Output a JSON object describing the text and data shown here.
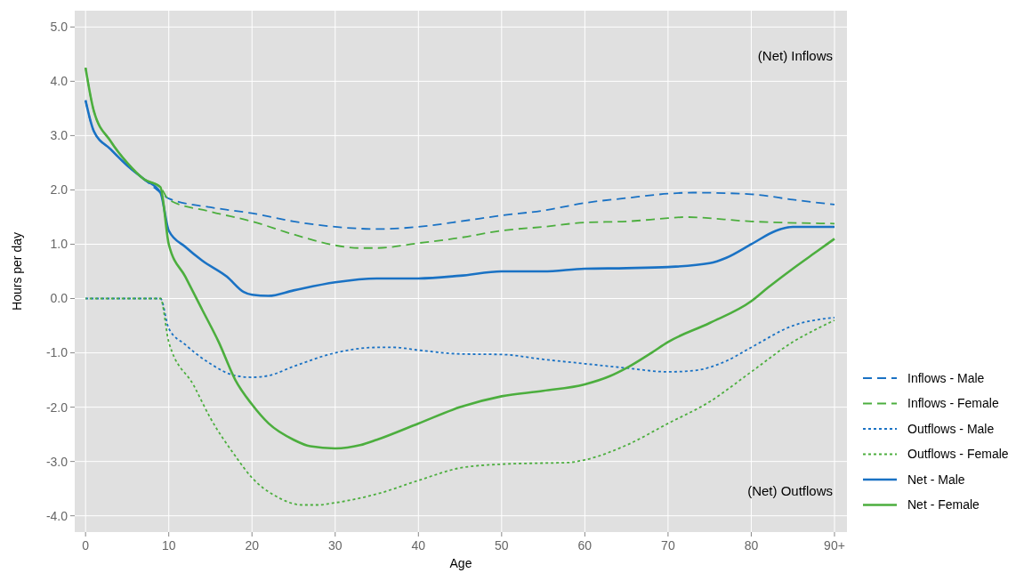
{
  "chart_data": {
    "type": "line",
    "xlabel": "Age",
    "ylabel": "Hours per day",
    "annotations": [
      "(Net) Inflows",
      "(Net) Outflows"
    ],
    "xlim": [
      -1.3,
      91.5
    ],
    "ylim": [
      -4.3,
      5.3
    ],
    "xticks": [
      0,
      10,
      20,
      30,
      40,
      50,
      60,
      70,
      80,
      {
        "value": 90,
        "label": "90+"
      }
    ],
    "yticks": [
      {
        "value": -4,
        "label": "-4.0"
      },
      {
        "value": -3,
        "label": "-3.0"
      },
      {
        "value": -2,
        "label": "-2.0"
      },
      {
        "value": -1,
        "label": "-1.0"
      },
      {
        "value": 0,
        "label": "0.0"
      },
      {
        "value": 1,
        "label": "1.0"
      },
      {
        "value": 2,
        "label": "2.0"
      },
      {
        "value": 3,
        "label": "3.0"
      },
      {
        "value": 4,
        "label": "4.0"
      },
      {
        "value": 5,
        "label": "5.0"
      }
    ],
    "grid": true,
    "legend": "right",
    "marker": "none",
    "series": [
      {
        "name": "Inflows - Male",
        "color": "#1a72c4",
        "line_style": "dashed",
        "x": [
          0,
          1,
          3,
          5,
          7,
          9,
          10,
          15,
          20,
          25,
          30,
          35,
          40,
          45,
          50,
          55,
          60,
          65,
          70,
          73,
          80,
          85,
          90
        ],
        "values": [
          3.65,
          3.08,
          2.75,
          2.45,
          2.2,
          1.95,
          1.84,
          1.68,
          1.57,
          1.42,
          1.32,
          1.28,
          1.32,
          1.42,
          1.53,
          1.62,
          1.76,
          1.85,
          1.93,
          1.95,
          1.92,
          1.82,
          1.73
        ]
      },
      {
        "name": "Inflows - Female",
        "color": "#4cae3e",
        "line_style": "dashed",
        "x": [
          0,
          1,
          3,
          5,
          7,
          9,
          10,
          15,
          20,
          25,
          30,
          33,
          35,
          40,
          45,
          50,
          55,
          60,
          65,
          70,
          72,
          80,
          90
        ],
        "values": [
          4.25,
          3.45,
          2.9,
          2.5,
          2.2,
          2.05,
          1.82,
          1.6,
          1.42,
          1.18,
          0.98,
          0.93,
          0.93,
          1.02,
          1.12,
          1.25,
          1.32,
          1.4,
          1.42,
          1.48,
          1.5,
          1.42,
          1.38
        ]
      },
      {
        "name": "Outflows - Male",
        "color": "#1a72c4",
        "line_style": "dotted",
        "x": [
          0,
          9,
          10,
          12,
          15,
          18,
          20,
          22,
          25,
          30,
          35,
          37,
          40,
          45,
          50,
          55,
          60,
          65,
          70,
          73,
          77,
          80,
          85,
          90
        ],
        "values": [
          0,
          0,
          -0.55,
          -0.85,
          -1.2,
          -1.42,
          -1.45,
          -1.42,
          -1.25,
          -1.0,
          -0.9,
          -0.9,
          -0.95,
          -1.02,
          -1.03,
          -1.12,
          -1.2,
          -1.28,
          -1.35,
          -1.33,
          -1.15,
          -0.9,
          -0.5,
          -0.35
        ]
      },
      {
        "name": "Outflows - Female",
        "color": "#4cae3e",
        "line_style": "dotted",
        "x": [
          0,
          9,
          10,
          13,
          15,
          18,
          20,
          23,
          26,
          28,
          30,
          35,
          40,
          45,
          50,
          55,
          58,
          60,
          65,
          70,
          75,
          80,
          85,
          88,
          90
        ],
        "values": [
          0,
          0,
          -0.8,
          -1.6,
          -2.2,
          -2.9,
          -3.3,
          -3.65,
          -3.8,
          -3.8,
          -3.76,
          -3.6,
          -3.35,
          -3.12,
          -3.05,
          -3.03,
          -3.02,
          -2.97,
          -2.7,
          -2.3,
          -1.9,
          -1.35,
          -0.8,
          -0.55,
          -0.4
        ]
      },
      {
        "name": "Net - Male",
        "color": "#1a72c4",
        "line_style": "solid",
        "x": [
          0,
          1,
          3,
          5,
          7,
          9,
          10,
          12,
          14,
          17,
          19,
          20,
          22,
          25,
          30,
          35,
          40,
          45,
          50,
          55,
          60,
          65,
          70,
          75,
          77,
          80,
          83,
          85,
          90
        ],
        "values": [
          3.65,
          3.08,
          2.75,
          2.45,
          2.2,
          1.95,
          1.25,
          0.95,
          0.7,
          0.4,
          0.12,
          0.07,
          0.05,
          0.15,
          0.3,
          0.37,
          0.37,
          0.42,
          0.5,
          0.5,
          0.55,
          0.56,
          0.58,
          0.65,
          0.75,
          1.0,
          1.25,
          1.32,
          1.32
        ]
      },
      {
        "name": "Net - Female",
        "color": "#4cae3e",
        "line_style": "solid",
        "x": [
          0,
          1,
          3,
          5,
          7,
          9,
          10,
          12,
          14,
          16,
          18,
          20,
          22,
          25,
          27,
          30,
          33,
          35,
          40,
          45,
          50,
          55,
          60,
          63,
          65,
          68,
          70,
          75,
          80,
          82,
          85,
          88,
          90
        ],
        "values": [
          4.25,
          3.45,
          2.9,
          2.5,
          2.2,
          2.05,
          1.0,
          0.4,
          -0.2,
          -0.8,
          -1.5,
          -1.95,
          -2.3,
          -2.6,
          -2.72,
          -2.76,
          -2.7,
          -2.6,
          -2.3,
          -2.0,
          -1.8,
          -1.7,
          -1.58,
          -1.43,
          -1.28,
          -1.0,
          -0.8,
          -0.45,
          -0.05,
          0.2,
          0.55,
          0.88,
          1.1
        ]
      }
    ]
  }
}
